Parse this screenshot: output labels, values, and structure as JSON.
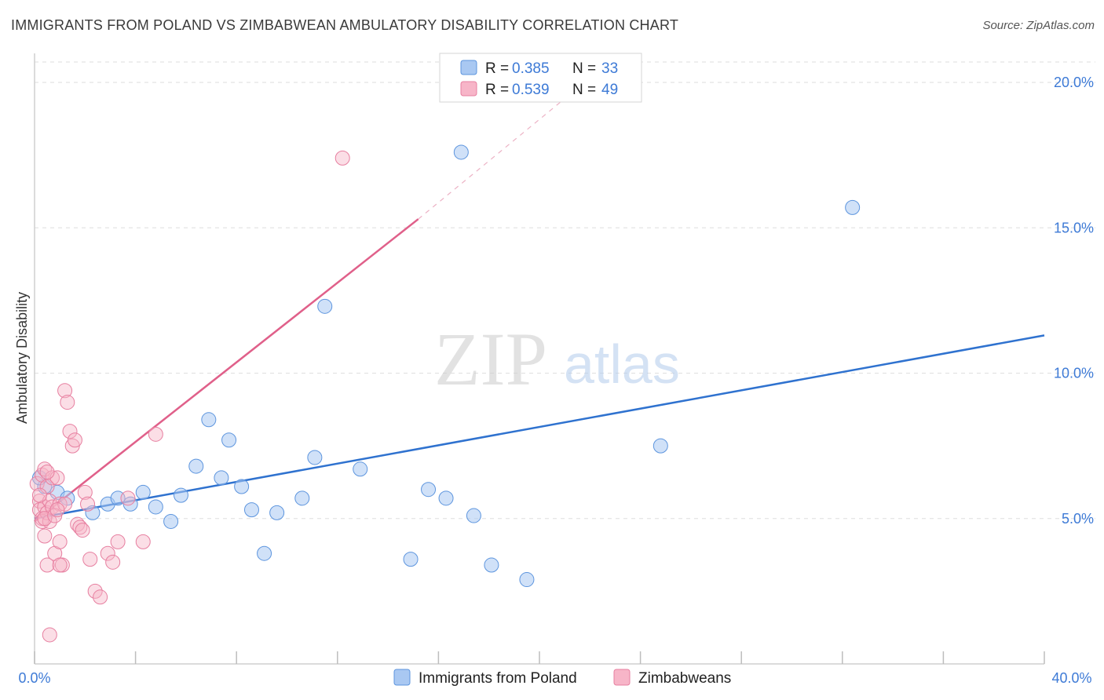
{
  "title": "IMMIGRANTS FROM POLAND VS ZIMBABWEAN AMBULATORY DISABILITY CORRELATION CHART",
  "source": "Source: ZipAtlas.com",
  "watermark": {
    "zip": "ZIP",
    "atlas": "atlas"
  },
  "legend": {
    "r_label": "R =",
    "n_label": "N =",
    "series1": {
      "r": "0.385",
      "n": "33"
    },
    "series2": {
      "r": "0.539",
      "n": "49"
    }
  },
  "colors": {
    "poland_fill": "#a9c8f2",
    "poland_stroke": "#5d95de",
    "poland_line": "#2f72cf",
    "zimbabwe_fill": "#f7b5c8",
    "zimbabwe_stroke": "#e77fa0",
    "zimbabwe_line": "#e0608a",
    "tick_text": "#3d7ad6",
    "grid": "#dedede"
  },
  "chart_data": {
    "type": "scatter",
    "xlabel": "",
    "ylabel": "Ambulatory Disability",
    "xlim": [
      0,
      40
    ],
    "ylim": [
      0,
      21
    ],
    "x_tick_labels": [
      "0.0%",
      "40.0%"
    ],
    "y_ticks": [
      5,
      10,
      15,
      20
    ],
    "y_tick_labels": [
      "5.0%",
      "10.0%",
      "15.0%",
      "20.0%"
    ],
    "grid": true,
    "legend_position": "top-center",
    "series": [
      {
        "name": "Immigrants from Poland",
        "r": 0.385,
        "n": 33,
        "points": [
          [
            0.4,
            6.1
          ],
          [
            0.9,
            5.9
          ],
          [
            1.3,
            5.7
          ],
          [
            2.3,
            5.2
          ],
          [
            2.9,
            5.5
          ],
          [
            3.3,
            5.7
          ],
          [
            3.8,
            5.5
          ],
          [
            4.3,
            5.9
          ],
          [
            4.8,
            5.4
          ],
          [
            5.4,
            4.9
          ],
          [
            5.8,
            5.8
          ],
          [
            6.4,
            6.8
          ],
          [
            6.9,
            8.4
          ],
          [
            7.4,
            6.4
          ],
          [
            7.7,
            7.7
          ],
          [
            8.2,
            6.1
          ],
          [
            8.6,
            5.3
          ],
          [
            9.1,
            3.8
          ],
          [
            9.6,
            5.2
          ],
          [
            10.6,
            5.7
          ],
          [
            11.1,
            7.1
          ],
          [
            11.5,
            12.3
          ],
          [
            12.9,
            6.7
          ],
          [
            14.9,
            3.6
          ],
          [
            15.6,
            6.0
          ],
          [
            16.3,
            5.7
          ],
          [
            16.9,
            17.6
          ],
          [
            17.4,
            5.1
          ],
          [
            18.1,
            3.4
          ],
          [
            19.5,
            2.9
          ],
          [
            24.8,
            7.5
          ],
          [
            32.4,
            15.7
          ],
          [
            0.2,
            6.4
          ]
        ],
        "trend": {
          "x": [
            0,
            40
          ],
          "y": [
            5.0,
            11.3
          ]
        }
      },
      {
        "name": "Zimbabweans",
        "r": 0.539,
        "n": 49,
        "points": [
          [
            0.1,
            6.2
          ],
          [
            0.2,
            5.6
          ],
          [
            0.2,
            5.3
          ],
          [
            0.3,
            5.0
          ],
          [
            0.3,
            6.5
          ],
          [
            0.3,
            4.9
          ],
          [
            0.4,
            6.7
          ],
          [
            0.4,
            5.4
          ],
          [
            0.4,
            4.4
          ],
          [
            0.5,
            6.1
          ],
          [
            0.5,
            5.2
          ],
          [
            0.5,
            3.4
          ],
          [
            0.6,
            5.6
          ],
          [
            0.6,
            4.9
          ],
          [
            0.7,
            6.4
          ],
          [
            0.7,
            5.4
          ],
          [
            0.8,
            3.8
          ],
          [
            0.9,
            6.4
          ],
          [
            1.0,
            5.5
          ],
          [
            1.0,
            4.2
          ],
          [
            1.1,
            3.4
          ],
          [
            1.2,
            5.5
          ],
          [
            1.2,
            9.4
          ],
          [
            1.3,
            9.0
          ],
          [
            1.4,
            8.0
          ],
          [
            1.5,
            7.5
          ],
          [
            1.6,
            7.7
          ],
          [
            1.7,
            4.8
          ],
          [
            1.8,
            4.7
          ],
          [
            1.9,
            4.6
          ],
          [
            2.0,
            5.9
          ],
          [
            2.1,
            5.5
          ],
          [
            2.2,
            3.6
          ],
          [
            2.4,
            2.5
          ],
          [
            2.6,
            2.3
          ],
          [
            2.9,
            3.8
          ],
          [
            3.1,
            3.5
          ],
          [
            3.3,
            4.2
          ],
          [
            3.7,
            5.7
          ],
          [
            4.3,
            4.2
          ],
          [
            4.8,
            7.9
          ],
          [
            12.2,
            17.4
          ],
          [
            0.6,
            1.0
          ],
          [
            1.0,
            3.4
          ],
          [
            0.2,
            5.8
          ],
          [
            0.4,
            5.0
          ],
          [
            0.8,
            5.1
          ],
          [
            0.5,
            6.6
          ],
          [
            0.9,
            5.3
          ]
        ],
        "trend": {
          "x": [
            0,
            15.2
          ],
          "y": [
            4.9,
            15.3
          ]
        },
        "trend_dashed": {
          "x": [
            15.2,
            21.5
          ],
          "y": [
            15.3,
            19.8
          ]
        }
      }
    ]
  }
}
